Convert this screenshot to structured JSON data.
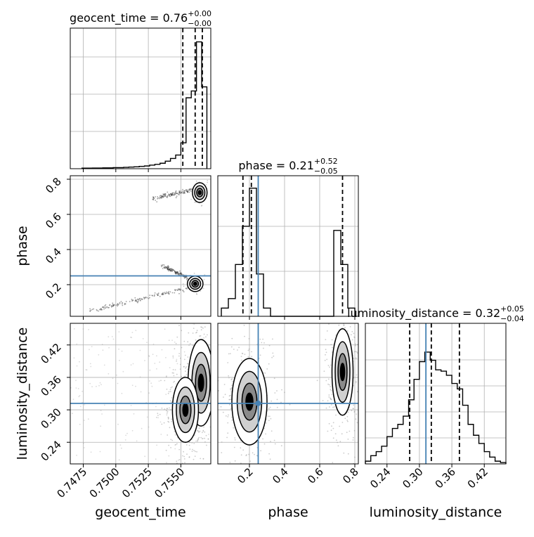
{
  "chart_data": {
    "type": "corner",
    "parameters": [
      "geocent_time",
      "phase",
      "luminosity_distance"
    ],
    "axis_labels": {
      "geocent_time": "geocent_time",
      "phase": "phase",
      "luminosity_distance": "luminosity_distance"
    },
    "titles": [
      {
        "param": "geocent_time",
        "name": "geocent_time",
        "value": "0.76",
        "upper": "+0.00",
        "lower": "−0.00"
      },
      {
        "param": "phase",
        "name": "phase",
        "value": "0.21",
        "upper": "+0.52",
        "lower": "−0.05"
      },
      {
        "param": "luminosity_distance",
        "name": "luminosity_distance",
        "value": "0.32",
        "upper": "+0.05",
        "lower": "−0.04"
      }
    ],
    "ranges": {
      "geocent_time": [
        0.7465,
        0.7573
      ],
      "phase": [
        0.02,
        0.82
      ],
      "luminosity_distance": [
        0.2,
        0.46
      ]
    },
    "ticks": {
      "geocent_time": [
        "0.7475",
        "0.7500",
        "0.7525",
        "0.7550"
      ],
      "phase": [
        "0.2",
        "0.4",
        "0.6",
        "0.8"
      ],
      "luminosity_distance": [
        "0.24",
        "0.30",
        "0.36",
        "0.42"
      ]
    },
    "truths": {
      "phase": 0.25,
      "luminosity_distance": 0.312
    },
    "quantiles": {
      "geocent_time": [
        0.75515,
        0.7561,
        0.75665
      ],
      "phase": [
        0.163,
        0.211,
        0.73
      ],
      "luminosity_distance": [
        0.282,
        0.322,
        0.374
      ]
    },
    "histograms": {
      "geocent_time": {
        "edges": [
          0.7474,
          0.7478,
          0.7482,
          0.7486,
          0.749,
          0.7494,
          0.7498,
          0.7502,
          0.7506,
          0.751,
          0.7514,
          0.7518,
          0.7522,
          0.7526,
          0.753,
          0.7534,
          0.7538,
          0.7542,
          0.7546,
          0.755,
          0.7554,
          0.7558,
          0.7562,
          0.7566,
          0.757
        ],
        "counts": [
          0.004,
          0.004,
          0.005,
          0.005,
          0.006,
          0.006,
          0.008,
          0.008,
          0.01,
          0.012,
          0.014,
          0.017,
          0.02,
          0.026,
          0.032,
          0.04,
          0.055,
          0.075,
          0.1,
          0.19,
          0.52,
          0.57,
          0.93,
          0.6
        ]
      },
      "phase": {
        "edges": [
          0.04,
          0.08,
          0.12,
          0.16,
          0.2,
          0.24,
          0.28,
          0.32,
          0.36,
          0.4,
          0.44,
          0.48,
          0.52,
          0.56,
          0.6,
          0.64,
          0.68,
          0.72,
          0.76,
          0.8
        ],
        "counts": [
          0.06,
          0.13,
          0.38,
          0.66,
          0.94,
          0.31,
          0.06,
          0,
          0,
          0,
          0,
          0,
          0,
          0,
          0,
          0,
          0.63,
          0.38,
          0.06
        ]
      },
      "luminosity_distance": {
        "edges": [
          0.2,
          0.21,
          0.22,
          0.23,
          0.24,
          0.25,
          0.26,
          0.27,
          0.28,
          0.29,
          0.3,
          0.31,
          0.32,
          0.33,
          0.34,
          0.35,
          0.36,
          0.37,
          0.38,
          0.39,
          0.4,
          0.41,
          0.42,
          0.43,
          0.44,
          0.45,
          0.46
        ],
        "counts": [
          0.02,
          0.06,
          0.09,
          0.13,
          0.2,
          0.26,
          0.29,
          0.35,
          0.47,
          0.62,
          0.75,
          0.82,
          0.76,
          0.69,
          0.68,
          0.65,
          0.59,
          0.55,
          0.43,
          0.29,
          0.21,
          0.15,
          0.09,
          0.05,
          0.02,
          0.01
        ]
      }
    },
    "mass_regions": [
      {
        "x": "geocent_time",
        "y": "phase",
        "clusters": [
          {
            "cx": 0.75645,
            "cy": 0.724,
            "sx": 0.00028,
            "sy": 0.028
          },
          {
            "cx": 0.7561,
            "cy": 0.205,
            "sx": 0.0003,
            "sy": 0.022
          }
        ],
        "tails": [
          {
            "from": [
              0.7528,
              0.69
            ],
            "to": [
              0.756,
              0.74
            ]
          },
          {
            "from": [
              0.748,
              0.05
            ],
            "to": [
              0.7555,
              0.18
            ]
          },
          {
            "from": [
              0.7535,
              0.31
            ],
            "to": [
              0.7555,
              0.24
            ]
          }
        ]
      },
      {
        "x": "geocent_time",
        "y": "luminosity_distance",
        "clusters": [
          {
            "cx": 0.75655,
            "cy": 0.35,
            "sx": 0.0005,
            "sy": 0.04
          },
          {
            "cx": 0.75535,
            "cy": 0.3,
            "sx": 0.0005,
            "sy": 0.03
          }
        ]
      },
      {
        "x": "phase",
        "y": "luminosity_distance",
        "clusters": [
          {
            "cx": 0.2,
            "cy": 0.315,
            "sx": 0.05,
            "sy": 0.04
          },
          {
            "cx": 0.73,
            "cy": 0.37,
            "sx": 0.03,
            "sy": 0.04
          }
        ]
      }
    ],
    "colors": {
      "hist": "#000000",
      "truth": "#4682b4",
      "grid": "#b0b0b0",
      "samples": "#9a9a9a"
    }
  }
}
